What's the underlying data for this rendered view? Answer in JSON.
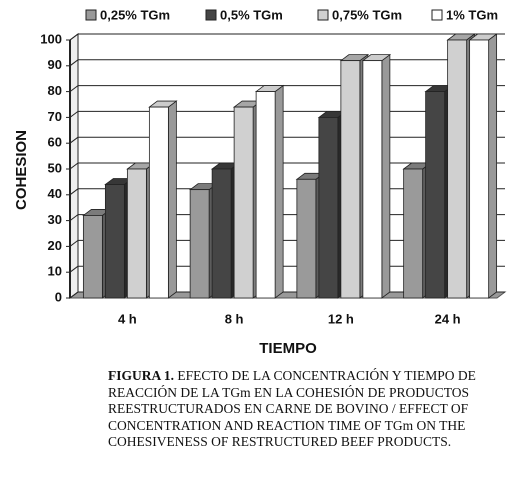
{
  "chart_data": {
    "type": "bar3d",
    "categories": [
      "4 h",
      "8 h",
      "12  h",
      "24 h"
    ],
    "series": [
      {
        "name": "0,25% TGm",
        "color": "#9a9a9a",
        "values": [
          32,
          42,
          46,
          50
        ]
      },
      {
        "name": "0,5% TGm",
        "color": "#454545",
        "values": [
          44,
          50,
          70,
          80
        ]
      },
      {
        "name": "0,75% TGm",
        "color": "#d0d0d0",
        "values": [
          50,
          74,
          92,
          100
        ]
      },
      {
        "name": "1% TGm",
        "color": "#ffffff",
        "values": [
          74,
          80,
          92,
          100
        ]
      }
    ],
    "ylabel": "COHESION",
    "xlabel": "TIEMPO",
    "ylim": [
      0,
      100
    ],
    "yticks": [
      0,
      10,
      20,
      30,
      40,
      50,
      60,
      70,
      80,
      90,
      100
    ],
    "grid": true,
    "legend": "top"
  },
  "caption": {
    "label": "FIGURA 1.",
    "text": "EFECTO DE LA CONCENTRACIÓN Y TIEMPO DE REACCIÓN DE LA TGm EN LA COHESIÓN DE PRODUCTOS REESTRUCTURADOS EN CARNE DE BOVINO / EFFECT OF CONCENTRATION AND REACTION TIME OF TGm ON THE COHESIVENESS OF RESTRUCTURED BEEF PRODUCTS."
  }
}
